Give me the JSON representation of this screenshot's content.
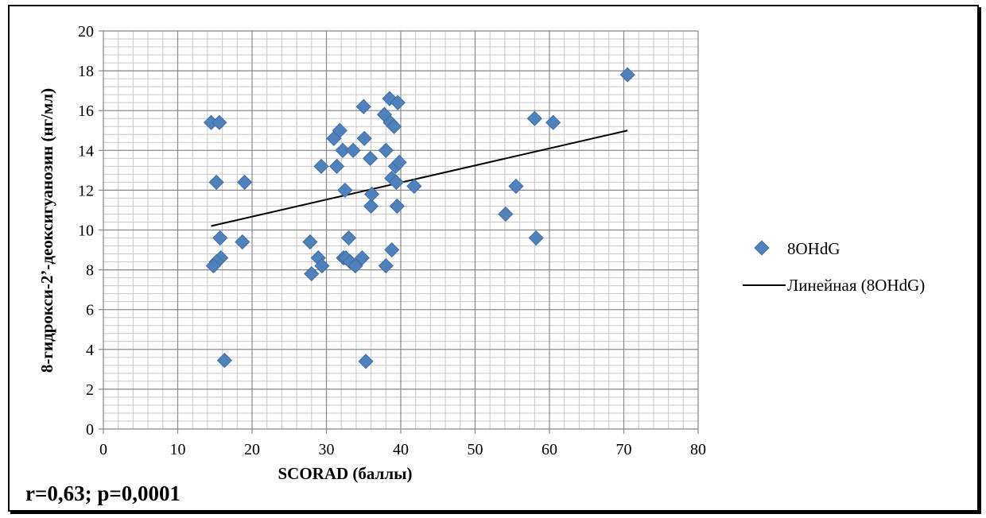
{
  "chart_data": {
    "type": "scatter",
    "xlabel": "SCORAD (баллы)",
    "ylabel": "8-гидрокси-2’-деоксигуанозин (нг/мл)",
    "xlim": [
      0,
      80
    ],
    "ylim": [
      0,
      20
    ],
    "x_ticks": [
      "0",
      "10",
      "20",
      "30",
      "40",
      "50",
      "60",
      "70",
      "80"
    ],
    "y_ticks": [
      "0",
      "2",
      "4",
      "6",
      "8",
      "10",
      "12",
      "14",
      "16",
      "18",
      "20"
    ],
    "grid": true,
    "legend_position": "right",
    "series": [
      {
        "name": "8OHdG",
        "color": "#4F81BD",
        "marker": "diamond",
        "points": [
          [
            14.5,
            15.4
          ],
          [
            15.6,
            15.4
          ],
          [
            15.2,
            12.4
          ],
          [
            19.0,
            12.4
          ],
          [
            15.7,
            9.6
          ],
          [
            18.7,
            9.4
          ],
          [
            15.8,
            8.6
          ],
          [
            15.2,
            8.4
          ],
          [
            14.8,
            8.2
          ],
          [
            16.3,
            3.45
          ],
          [
            27.8,
            9.4
          ],
          [
            28.0,
            7.8
          ],
          [
            28.9,
            8.6
          ],
          [
            29.4,
            8.2
          ],
          [
            29.3,
            13.2
          ],
          [
            31.0,
            14.6
          ],
          [
            31.4,
            13.2
          ],
          [
            31.8,
            15.0
          ],
          [
            32.2,
            14.0
          ],
          [
            32.5,
            12.0
          ],
          [
            32.3,
            8.6
          ],
          [
            32.6,
            8.6
          ],
          [
            33.0,
            9.6
          ],
          [
            33.2,
            8.4
          ],
          [
            33.6,
            14.0
          ],
          [
            33.9,
            8.2
          ],
          [
            34.8,
            8.6
          ],
          [
            35.0,
            16.2
          ],
          [
            35.1,
            14.6
          ],
          [
            35.3,
            3.4
          ],
          [
            35.9,
            13.6
          ],
          [
            36.0,
            11.2
          ],
          [
            36.1,
            11.8
          ],
          [
            37.8,
            15.8
          ],
          [
            38.0,
            14.0
          ],
          [
            38.0,
            8.2
          ],
          [
            38.5,
            16.6
          ],
          [
            38.6,
            15.4
          ],
          [
            38.8,
            12.6
          ],
          [
            38.8,
            9.0
          ],
          [
            39.1,
            15.2
          ],
          [
            39.3,
            13.2
          ],
          [
            39.4,
            12.4
          ],
          [
            39.6,
            16.4
          ],
          [
            39.5,
            11.2
          ],
          [
            39.8,
            13.4
          ],
          [
            41.8,
            12.2
          ],
          [
            54.1,
            10.8
          ],
          [
            55.5,
            12.2
          ],
          [
            58.0,
            15.6
          ],
          [
            58.2,
            9.6
          ],
          [
            60.5,
            15.4
          ],
          [
            70.5,
            17.8
          ]
        ]
      }
    ],
    "trendline": {
      "name": "Линейная (8OHdG)",
      "type": "linear",
      "color": "#000000",
      "from": [
        14.5,
        10.2
      ],
      "to": [
        70.5,
        15.0
      ]
    },
    "annotation": "r=0,63; p=0,0001"
  }
}
